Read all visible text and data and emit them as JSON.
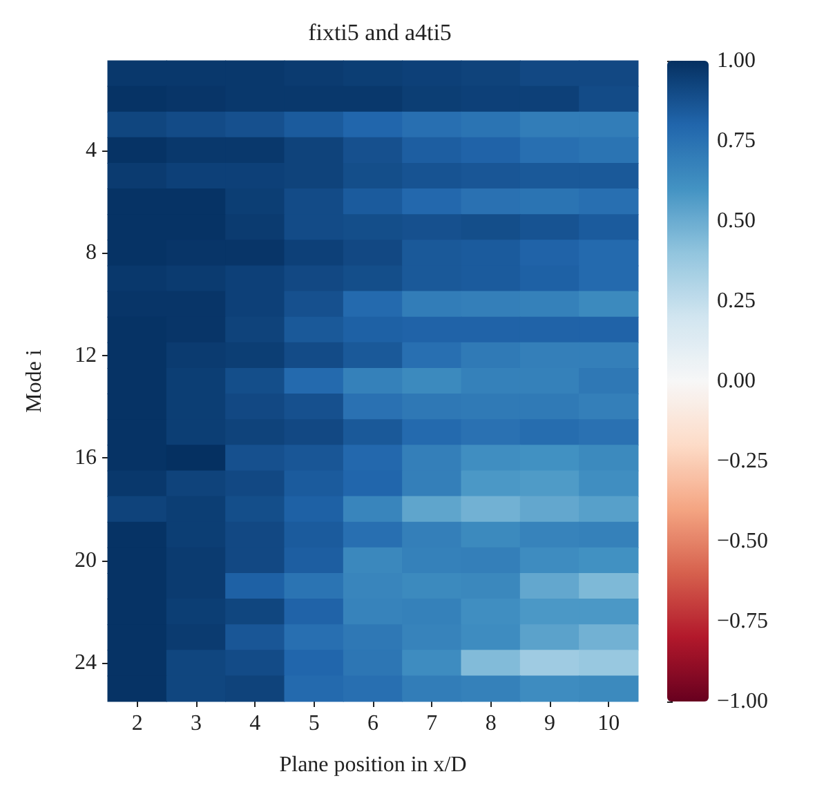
{
  "chart_data": {
    "type": "heatmap",
    "title": "fixti5 and a4ti5",
    "xlabel": "Plane position in x/D",
    "ylabel": "Mode i",
    "categories": [
      "2",
      "3",
      "4",
      "5",
      "6",
      "7",
      "8",
      "9",
      "10"
    ],
    "y_categories": [
      null,
      null,
      null,
      "4",
      null,
      null,
      null,
      "8",
      null,
      null,
      null,
      "12",
      null,
      null,
      null,
      "16",
      null,
      null,
      null,
      "20",
      null,
      null,
      null,
      "24",
      null
    ],
    "cells": [
      [
        0.97,
        0.97,
        0.97,
        0.96,
        0.95,
        0.94,
        0.93,
        0.91,
        0.91
      ],
      [
        0.99,
        0.98,
        0.97,
        0.97,
        0.97,
        0.95,
        0.94,
        0.94,
        0.9
      ],
      [
        0.92,
        0.9,
        0.88,
        0.84,
        0.8,
        0.76,
        0.74,
        0.7,
        0.7
      ],
      [
        0.99,
        0.97,
        0.97,
        0.93,
        0.88,
        0.83,
        0.81,
        0.76,
        0.74
      ],
      [
        0.96,
        0.94,
        0.94,
        0.93,
        0.89,
        0.87,
        0.86,
        0.85,
        0.85
      ],
      [
        0.99,
        0.99,
        0.95,
        0.9,
        0.84,
        0.79,
        0.75,
        0.74,
        0.76
      ],
      [
        0.99,
        0.99,
        0.96,
        0.9,
        0.89,
        0.88,
        0.89,
        0.87,
        0.84
      ],
      [
        0.99,
        0.98,
        0.98,
        0.94,
        0.91,
        0.85,
        0.84,
        0.81,
        0.78
      ],
      [
        0.97,
        0.96,
        0.94,
        0.91,
        0.89,
        0.85,
        0.84,
        0.82,
        0.78
      ],
      [
        0.98,
        0.98,
        0.94,
        0.88,
        0.78,
        0.7,
        0.69,
        0.68,
        0.64
      ],
      [
        0.99,
        0.98,
        0.93,
        0.85,
        0.82,
        0.81,
        0.81,
        0.81,
        0.81
      ],
      [
        0.99,
        0.96,
        0.95,
        0.9,
        0.85,
        0.76,
        0.71,
        0.69,
        0.69
      ],
      [
        0.99,
        0.95,
        0.89,
        0.78,
        0.68,
        0.64,
        0.68,
        0.68,
        0.72
      ],
      [
        0.99,
        0.95,
        0.91,
        0.88,
        0.75,
        0.72,
        0.71,
        0.71,
        0.69
      ],
      [
        0.99,
        0.95,
        0.93,
        0.91,
        0.85,
        0.78,
        0.75,
        0.77,
        0.75
      ],
      [
        0.99,
        1.0,
        0.88,
        0.86,
        0.79,
        0.69,
        0.62,
        0.61,
        0.64
      ],
      [
        0.97,
        0.93,
        0.91,
        0.84,
        0.8,
        0.69,
        0.58,
        0.57,
        0.62
      ],
      [
        0.93,
        0.95,
        0.89,
        0.82,
        0.66,
        0.53,
        0.48,
        0.52,
        0.55
      ],
      [
        0.99,
        0.95,
        0.91,
        0.84,
        0.76,
        0.69,
        0.64,
        0.67,
        0.68
      ],
      [
        0.99,
        0.96,
        0.91,
        0.83,
        0.65,
        0.68,
        0.69,
        0.63,
        0.61
      ],
      [
        0.99,
        0.96,
        0.82,
        0.74,
        0.66,
        0.64,
        0.65,
        0.52,
        0.45
      ],
      [
        0.99,
        0.95,
        0.92,
        0.81,
        0.67,
        0.68,
        0.62,
        0.58,
        0.58
      ],
      [
        0.99,
        0.96,
        0.86,
        0.76,
        0.72,
        0.67,
        0.63,
        0.54,
        0.48
      ],
      [
        0.99,
        0.92,
        0.9,
        0.8,
        0.73,
        0.63,
        0.44,
        0.36,
        0.38
      ],
      [
        0.99,
        0.92,
        0.93,
        0.78,
        0.76,
        0.7,
        0.68,
        0.63,
        0.64
      ]
    ],
    "clim": [
      -1,
      1
    ],
    "cticks": [
      {
        "value": -1,
        "label": "−1.00"
      },
      {
        "value": -0.75,
        "label": "−0.75"
      },
      {
        "value": -0.5,
        "label": "−0.50"
      },
      {
        "value": -0.25,
        "label": "−0.25"
      },
      {
        "value": 0,
        "label": "0.00"
      },
      {
        "value": 0.25,
        "label": "0.25"
      },
      {
        "value": 0.5,
        "label": "0.50"
      },
      {
        "value": 0.75,
        "label": "0.75"
      },
      {
        "value": 1,
        "label": "1.00"
      }
    ]
  }
}
